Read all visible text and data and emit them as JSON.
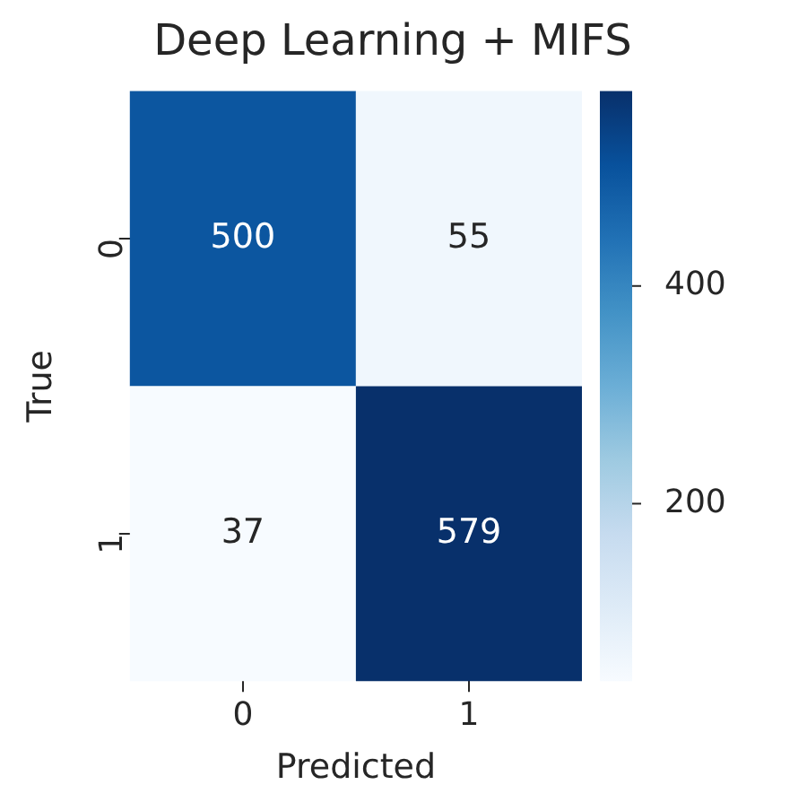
{
  "chart_data": {
    "type": "heatmap",
    "title": "Deep Learning + MIFS",
    "xlabel": "Predicted",
    "ylabel": "True",
    "categories": [
      "0",
      "1"
    ],
    "y_categories": [
      "0",
      "1"
    ],
    "cells": [
      [
        500,
        55
      ],
      [
        37,
        579
      ]
    ],
    "clim": [
      37,
      579
    ],
    "cticks": [
      200,
      400
    ],
    "data_labels": true
  }
}
